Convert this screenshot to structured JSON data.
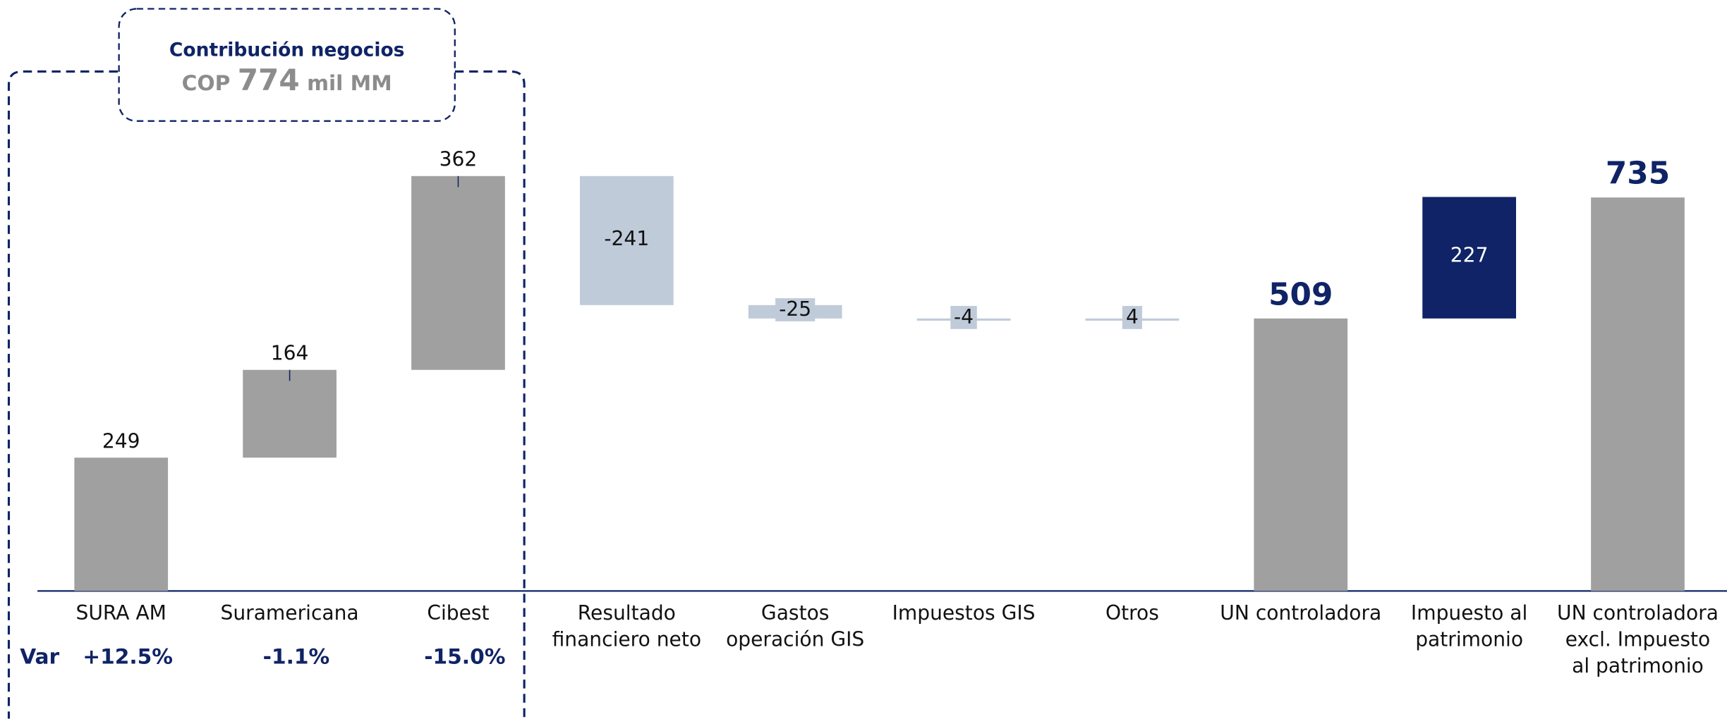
{
  "chart_data": {
    "type": "waterfall",
    "header": {
      "title": "Contribución negocios",
      "prefix": "COP",
      "amount": "774",
      "unit": "mil MM"
    },
    "categories": [
      "SURA AM",
      "Suramericana",
      "Cibest",
      "Resultado financiero neto",
      "Gastos operación GIS",
      "Impuestos GIS",
      "Otros",
      "UN controladora",
      "Impuesto al patrimonio",
      "UN controladora excl. Impuesto al patrimonio"
    ],
    "values": [
      249,
      164,
      362,
      -241,
      -25,
      -4,
      4,
      509,
      227,
      735
    ],
    "is_total": [
      false,
      false,
      false,
      false,
      false,
      false,
      false,
      true,
      false,
      true
    ],
    "colors": [
      "#a0a0a0",
      "#a0a0a0",
      "#a0a0a0",
      "#bfcbd9",
      "#bfcbd9",
      "#bfcbd9",
      "#bfcbd9",
      "#a0a0a0",
      "#0f2366",
      "#a0a0a0"
    ],
    "variation_label": "Var",
    "variations": [
      "+12.5%",
      "-1.1%",
      "-15.0%"
    ]
  }
}
